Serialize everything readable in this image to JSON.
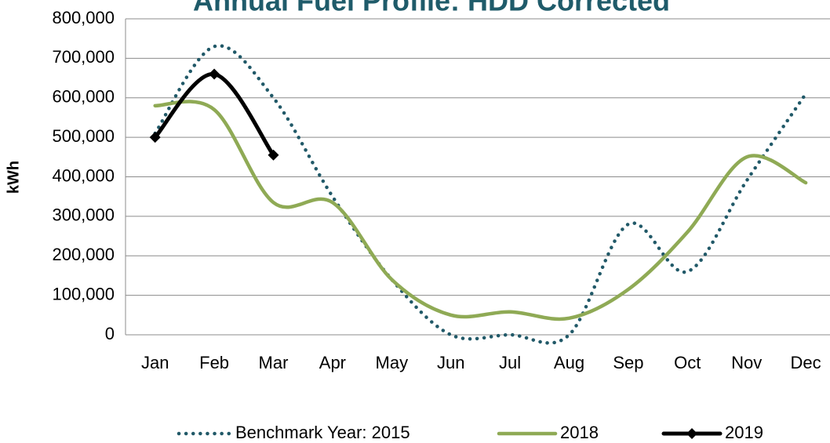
{
  "chart_data": {
    "type": "line",
    "title": "Annual Fuel Profile: HDD Corrected",
    "y_label": "kWh",
    "categories": [
      "Jan",
      "Feb",
      "Mar",
      "Apr",
      "May",
      "Jun",
      "Jul",
      "Aug",
      "Sep",
      "Oct",
      "Nov",
      "Dec"
    ],
    "series": [
      {
        "name": "Benchmark Year: 2015",
        "color": "#215968",
        "style": "dotted",
        "values": [
          510000,
          730000,
          600000,
          350000,
          140000,
          0,
          0,
          0,
          280000,
          160000,
          390000,
          610000
        ]
      },
      {
        "name": "2018",
        "color": "#8faa55",
        "style": "solid",
        "values": [
          580000,
          570000,
          335000,
          335000,
          140000,
          50000,
          58000,
          42000,
          115000,
          260000,
          450000,
          385000
        ]
      },
      {
        "name": "2019",
        "color": "#000000",
        "style": "solid",
        "marker": "diamond",
        "values": [
          500000,
          660000,
          455000,
          null,
          null,
          null,
          null,
          null,
          null,
          null,
          null,
          null
        ]
      }
    ],
    "ylim": [
      0,
      800000
    ],
    "yticks": [
      {
        "value": 0,
        "label": "0"
      },
      {
        "value": 100000,
        "label": "100,000"
      },
      {
        "value": 200000,
        "label": "200,000"
      },
      {
        "value": 300000,
        "label": "300,000"
      },
      {
        "value": 400000,
        "label": "400,000"
      },
      {
        "value": 500000,
        "label": "500,000"
      },
      {
        "value": 600000,
        "label": "600,000"
      },
      {
        "value": 700000,
        "label": "700,000"
      },
      {
        "value": 800000,
        "label": "800,000"
      }
    ],
    "grid": true,
    "legend": "bottom"
  }
}
